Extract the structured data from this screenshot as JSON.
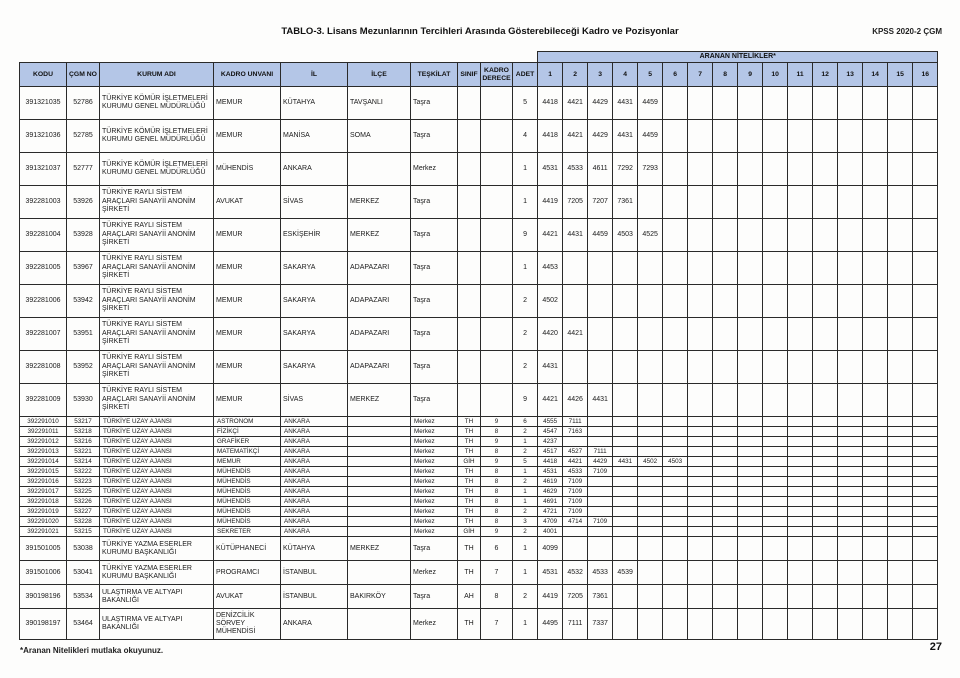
{
  "page": {
    "title": "TABLO-3. Lisans Mezunlarının Tercihleri Arasında Gösterebileceği Kadro ve Pozisyonlar",
    "top_right": "KPSS 2020-2 ÇGM",
    "footnote": "*Aranan Nitelikleri mutlaka okuyunuz.",
    "page_number": "27"
  },
  "colors": {
    "header_bg": "#b4c6e7",
    "border": "#2a2a2a"
  },
  "table": {
    "aranan_header": "ARANAN NİTELİKLER*",
    "columns": [
      "KODU",
      "ÇGM NO",
      "KURUM ADI",
      "KADRO UNVANI",
      "İL",
      "İLÇE",
      "TEŞKİLAT",
      "SINIF",
      "KADRO DERECE",
      "ADET"
    ],
    "nitelik_columns": [
      "1",
      "2",
      "3",
      "4",
      "5",
      "6",
      "7",
      "8",
      "9",
      "10",
      "11",
      "12",
      "13",
      "14",
      "15",
      "16"
    ],
    "rows": [
      {
        "kodu": "391321035",
        "cgm": "52786",
        "kurum": "TÜRKİYE KÖMÜR İŞLETMELERİ KURUMU  GENEL MÜDÜRLÜĞÜ",
        "unvan": "MEMUR",
        "il": "KÜTAHYA",
        "ilce": "TAVŞANLI",
        "teskilat": "Taşra",
        "sinif": "",
        "derece": "",
        "adet": "5",
        "nitelikler": [
          "4418",
          "4421",
          "4429",
          "4431",
          "4459"
        ]
      },
      {
        "kodu": "391321036",
        "cgm": "52785",
        "kurum": "TÜRKİYE KÖMÜR İŞLETMELERİ KURUMU  GENEL MÜDÜRLÜĞÜ",
        "unvan": "MEMUR",
        "il": "MANİSA",
        "ilce": "SOMA",
        "teskilat": "Taşra",
        "sinif": "",
        "derece": "",
        "adet": "4",
        "nitelikler": [
          "4418",
          "4421",
          "4429",
          "4431",
          "4459"
        ]
      },
      {
        "kodu": "391321037",
        "cgm": "52777",
        "kurum": "TÜRKİYE KÖMÜR İŞLETMELERİ KURUMU  GENEL MÜDÜRLÜĞÜ",
        "unvan": "MÜHENDİS",
        "il": "ANKARA",
        "ilce": "",
        "teskilat": "Merkez",
        "sinif": "",
        "derece": "",
        "adet": "1",
        "nitelikler": [
          "4531",
          "4533",
          "4611",
          "7292",
          "7293"
        ]
      },
      {
        "kodu": "392281003",
        "cgm": "53926",
        "kurum": "TÜRKİYE RAYLI SİSTEM ARAÇLARI SANAYİİ ANONİM ŞİRKETİ",
        "unvan": "AVUKAT",
        "il": "SİVAS",
        "ilce": "MERKEZ",
        "teskilat": "Taşra",
        "sinif": "",
        "derece": "",
        "adet": "1",
        "nitelikler": [
          "4419",
          "7205",
          "7207",
          "7361"
        ]
      },
      {
        "kodu": "392281004",
        "cgm": "53928",
        "kurum": "TÜRKİYE RAYLI SİSTEM ARAÇLARI SANAYİİ ANONİM ŞİRKETİ",
        "unvan": "MEMUR",
        "il": "ESKİŞEHİR",
        "ilce": "MERKEZ",
        "teskilat": "Taşra",
        "sinif": "",
        "derece": "",
        "adet": "9",
        "nitelikler": [
          "4421",
          "4431",
          "4459",
          "4503",
          "4525"
        ]
      },
      {
        "kodu": "392281005",
        "cgm": "53967",
        "kurum": "TÜRKİYE RAYLI SİSTEM ARAÇLARI SANAYİİ ANONİM ŞİRKETİ",
        "unvan": "MEMUR",
        "il": "SAKARYA",
        "ilce": "ADAPAZARI",
        "teskilat": "Taşra",
        "sinif": "",
        "derece": "",
        "adet": "1",
        "nitelikler": [
          "4453"
        ]
      },
      {
        "kodu": "392281006",
        "cgm": "53942",
        "kurum": "TÜRKİYE RAYLI SİSTEM ARAÇLARI SANAYİİ ANONİM ŞİRKETİ",
        "unvan": "MEMUR",
        "il": "SAKARYA",
        "ilce": "ADAPAZARI",
        "teskilat": "Taşra",
        "sinif": "",
        "derece": "",
        "adet": "2",
        "nitelikler": [
          "4502"
        ]
      },
      {
        "kodu": "392281007",
        "cgm": "53951",
        "kurum": "TÜRKİYE RAYLI SİSTEM ARAÇLARI SANAYİİ ANONİM ŞİRKETİ",
        "unvan": "MEMUR",
        "il": "SAKARYA",
        "ilce": "ADAPAZARI",
        "teskilat": "Taşra",
        "sinif": "",
        "derece": "",
        "adet": "2",
        "nitelikler": [
          "4420",
          "4421"
        ]
      },
      {
        "kodu": "392281008",
        "cgm": "53952",
        "kurum": "TÜRKİYE RAYLI SİSTEM ARAÇLARI SANAYİİ ANONİM ŞİRKETİ",
        "unvan": "MEMUR",
        "il": "SAKARYA",
        "ilce": "ADAPAZARI",
        "teskilat": "Taşra",
        "sinif": "",
        "derece": "",
        "adet": "2",
        "nitelikler": [
          "4431"
        ]
      },
      {
        "kodu": "392281009",
        "cgm": "53930",
        "kurum": "TÜRKİYE RAYLI SİSTEM ARAÇLARI SANAYİİ ANONİM ŞİRKETİ",
        "unvan": "MEMUR",
        "il": "SİVAS",
        "ilce": "MERKEZ",
        "teskilat": "Taşra",
        "sinif": "",
        "derece": "",
        "adet": "9",
        "nitelikler": [
          "4421",
          "4426",
          "4431"
        ]
      },
      {
        "kodu": "392291010",
        "cgm": "53217",
        "kurum": "TÜRKİYE UZAY AJANSI",
        "unvan": "ASTRONOM",
        "il": "ANKARA",
        "ilce": "",
        "teskilat": "Merkez",
        "sinif": "TH",
        "derece": "9",
        "adet": "6",
        "nitelikler": [
          "4555",
          "7111"
        ]
      },
      {
        "kodu": "392291011",
        "cgm": "53218",
        "kurum": "TÜRKİYE UZAY AJANSI",
        "unvan": "FİZİKÇİ",
        "il": "ANKARA",
        "ilce": "",
        "teskilat": "Merkez",
        "sinif": "TH",
        "derece": "8",
        "adet": "2",
        "nitelikler": [
          "4547",
          "7163"
        ]
      },
      {
        "kodu": "392291012",
        "cgm": "53216",
        "kurum": "TÜRKİYE UZAY AJANSI",
        "unvan": "GRAFİKER",
        "il": "ANKARA",
        "ilce": "",
        "teskilat": "Merkez",
        "sinif": "TH",
        "derece": "9",
        "adet": "1",
        "nitelikler": [
          "4237"
        ]
      },
      {
        "kodu": "392291013",
        "cgm": "53221",
        "kurum": "TÜRKİYE UZAY AJANSI",
        "unvan": "MATEMATİKÇİ",
        "il": "ANKARA",
        "ilce": "",
        "teskilat": "Merkez",
        "sinif": "TH",
        "derece": "8",
        "adet": "2",
        "nitelikler": [
          "4517",
          "4527",
          "7111"
        ]
      },
      {
        "kodu": "392291014",
        "cgm": "53214",
        "kurum": "TÜRKİYE UZAY AJANSI",
        "unvan": "MEMUR",
        "il": "ANKARA",
        "ilce": "",
        "teskilat": "Merkez",
        "sinif": "GİH",
        "derece": "9",
        "adet": "5",
        "nitelikler": [
          "4418",
          "4421",
          "4429",
          "4431",
          "4502",
          "4503"
        ]
      },
      {
        "kodu": "392291015",
        "cgm": "53222",
        "kurum": "TÜRKİYE UZAY AJANSI",
        "unvan": "MÜHENDİS",
        "il": "ANKARA",
        "ilce": "",
        "teskilat": "Merkez",
        "sinif": "TH",
        "derece": "8",
        "adet": "1",
        "nitelikler": [
          "4531",
          "4533",
          "7109"
        ]
      },
      {
        "kodu": "392291016",
        "cgm": "53223",
        "kurum": "TÜRKİYE UZAY AJANSI",
        "unvan": "MÜHENDİS",
        "il": "ANKARA",
        "ilce": "",
        "teskilat": "Merkez",
        "sinif": "TH",
        "derece": "8",
        "adet": "2",
        "nitelikler": [
          "4619",
          "7109"
        ]
      },
      {
        "kodu": "392291017",
        "cgm": "53225",
        "kurum": "TÜRKİYE UZAY AJANSI",
        "unvan": "MÜHENDİS",
        "il": "ANKARA",
        "ilce": "",
        "teskilat": "Merkez",
        "sinif": "TH",
        "derece": "8",
        "adet": "1",
        "nitelikler": [
          "4629",
          "7109"
        ]
      },
      {
        "kodu": "392291018",
        "cgm": "53226",
        "kurum": "TÜRKİYE UZAY AJANSI",
        "unvan": "MÜHENDİS",
        "il": "ANKARA",
        "ilce": "",
        "teskilat": "Merkez",
        "sinif": "TH",
        "derece": "8",
        "adet": "1",
        "nitelikler": [
          "4691",
          "7109"
        ]
      },
      {
        "kodu": "392291019",
        "cgm": "53227",
        "kurum": "TÜRKİYE UZAY AJANSI",
        "unvan": "MÜHENDİS",
        "il": "ANKARA",
        "ilce": "",
        "teskilat": "Merkez",
        "sinif": "TH",
        "derece": "8",
        "adet": "2",
        "nitelikler": [
          "4721",
          "7109"
        ]
      },
      {
        "kodu": "392291020",
        "cgm": "53228",
        "kurum": "TÜRKİYE UZAY AJANSI",
        "unvan": "MÜHENDİS",
        "il": "ANKARA",
        "ilce": "",
        "teskilat": "Merkez",
        "sinif": "TH",
        "derece": "8",
        "adet": "3",
        "nitelikler": [
          "4709",
          "4714",
          "7109"
        ]
      },
      {
        "kodu": "392291021",
        "cgm": "53215",
        "kurum": "TÜRKİYE UZAY AJANSI",
        "unvan": "SEKRETER",
        "il": "ANKARA",
        "ilce": "",
        "teskilat": "Merkez",
        "sinif": "GİH",
        "derece": "9",
        "adet": "2",
        "nitelikler": [
          "4001"
        ]
      },
      {
        "kodu": "391501005",
        "cgm": "53038",
        "kurum": "TÜRKİYE YAZMA ESERLER KURUMU BAŞKANLIĞI",
        "unvan": "KÜTÜPHANECİ",
        "il": "KÜTAHYA",
        "ilce": "MERKEZ",
        "teskilat": "Taşra",
        "sinif": "TH",
        "derece": "6",
        "adet": "1",
        "nitelikler": [
          "4099"
        ]
      },
      {
        "kodu": "391501006",
        "cgm": "53041",
        "kurum": "TÜRKİYE YAZMA ESERLER KURUMU BAŞKANLIĞI",
        "unvan": "PROGRAMCI",
        "il": "İSTANBUL",
        "ilce": "",
        "teskilat": "Merkez",
        "sinif": "TH",
        "derece": "7",
        "adet": "1",
        "nitelikler": [
          "4531",
          "4532",
          "4533",
          "4539"
        ]
      },
      {
        "kodu": "390198196",
        "cgm": "53534",
        "kurum": "ULAŞTIRMA VE ALTYAPI BAKANLIĞI",
        "unvan": "AVUKAT",
        "il": "İSTANBUL",
        "ilce": "BAKIRKÖY",
        "teskilat": "Taşra",
        "sinif": "AH",
        "derece": "8",
        "adet": "2",
        "nitelikler": [
          "4419",
          "7205",
          "7361"
        ]
      },
      {
        "kodu": "390198197",
        "cgm": "53464",
        "kurum": "ULAŞTIRMA VE ALTYAPI BAKANLIĞI",
        "unvan": "DENİZCİLİK SÖRVEY MÜHENDİSİ",
        "il": "ANKARA",
        "ilce": "",
        "teskilat": "Merkez",
        "sinif": "TH",
        "derece": "7",
        "adet": "1",
        "nitelikler": [
          "4495",
          "7111",
          "7337"
        ]
      }
    ]
  }
}
